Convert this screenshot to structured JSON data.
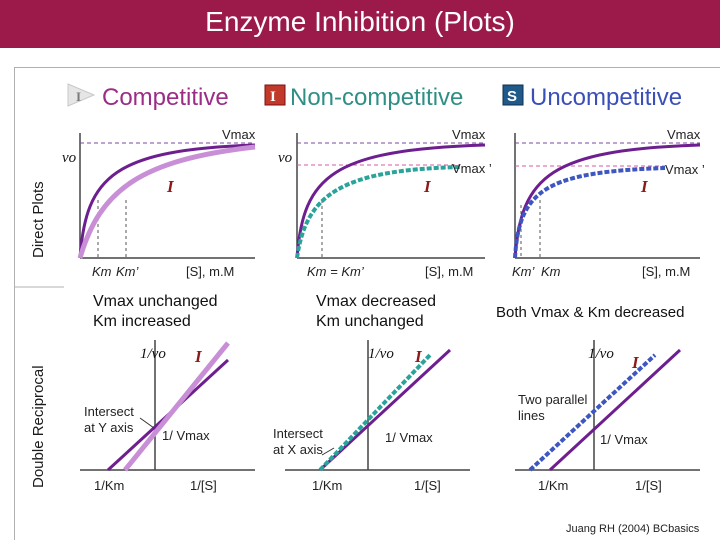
{
  "title": "Enzyme Inhibition (Plots)",
  "colors": {
    "title_bg": "#9c1a4a",
    "competitive": "#9b2d86",
    "noncompetitive": "#2f8f85",
    "uncompetitive": "#3b4fb8",
    "no_inhibitor": "#6e1f8f",
    "inhibitor_I": "#8b1a1a"
  },
  "legend": {
    "competitive": "Competitive",
    "noncompetitive": "Non-competitive",
    "uncompetitive": "Uncompetitive",
    "box_I": "I",
    "box_S": "S"
  },
  "row_labels": {
    "direct": "Direct Plots",
    "reciprocal": "Double Reciprocal"
  },
  "direct": {
    "competitive": {
      "vmax": "Vmax",
      "vo": "vo",
      "inhibitor": "I",
      "km": "Km",
      "km_prime": "Km’",
      "x_axis": "[S], m.M"
    },
    "noncompetitive": {
      "vmax": "Vmax",
      "vmax_prime": "Vmax ’",
      "vo": "vo",
      "inhibitor": "I",
      "km_eq": "Km = Km’",
      "x_axis": "[S], m.M"
    },
    "uncompetitive": {
      "vmax": "Vmax",
      "vmax_prime": "Vmax ’",
      "inhibitor": "I",
      "km_prime": "Km’",
      "km": "Km",
      "x_axis": "[S], m.M"
    }
  },
  "summary": {
    "competitive": {
      "line1": "Vmax unchanged",
      "line2": "Km increased"
    },
    "noncompetitive": {
      "line1": "Vmax decreased",
      "line2": "Km unchanged"
    },
    "uncompetitive": {
      "line1": "Both Vmax & Km decreased"
    }
  },
  "reciprocal": {
    "competitive": {
      "y_axis": "1/vo",
      "inhibitor": "I",
      "note1": "Intersect",
      "note2": "at Y axis",
      "intercept": "1/ Vmax",
      "x_intercept": "1/Km",
      "x_axis": "1/[S]"
    },
    "noncompetitive": {
      "y_axis": "1/vo",
      "inhibitor": "I",
      "note1": "Intersect",
      "note2": "at X axis",
      "intercept": "1/ Vmax",
      "x_intercept": "1/Km",
      "x_axis": "1/[S]"
    },
    "uncompetitive": {
      "y_axis": "1/vo",
      "inhibitor": "I",
      "note1": "Two parallel",
      "note2": "lines",
      "intercept": "1/ Vmax",
      "x_intercept": "1/Km",
      "x_axis": "1/[S]"
    }
  },
  "credit": "Juang RH (2004) BCbasics"
}
